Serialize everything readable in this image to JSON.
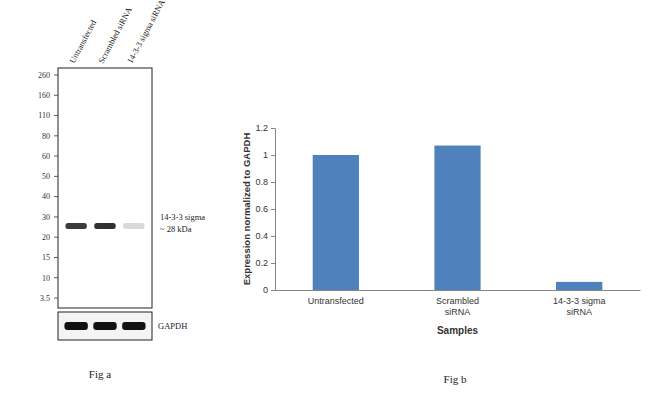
{
  "blot": {
    "lanes": [
      "Untransfected",
      "Scrambled siRNA",
      "14-3-3 sigma siRNA"
    ],
    "markers": [
      260,
      160,
      110,
      80,
      60,
      50,
      40,
      30,
      20,
      15,
      10,
      3.5
    ],
    "target_label": [
      "14-3-3 sigma",
      "~ 28 kDa"
    ],
    "loading_control": "GAPDH"
  },
  "captions": [
    "Fig a",
    "Fig b"
  ],
  "chart_data": {
    "type": "bar",
    "categories": [
      "Untransfected",
      "Scrambled siRNA",
      "14-3-3 sigma siRNA"
    ],
    "values": [
      1,
      1.07,
      0.06
    ],
    "color": "#4f81bd",
    "x_label": "Samples",
    "y_label": "Expression normalized to GAPDH",
    "ylim": [
      0,
      1.2
    ],
    "yticks": [
      0,
      0.2,
      0.4,
      0.6,
      0.8,
      1,
      1.2
    ],
    "grid": false
  }
}
